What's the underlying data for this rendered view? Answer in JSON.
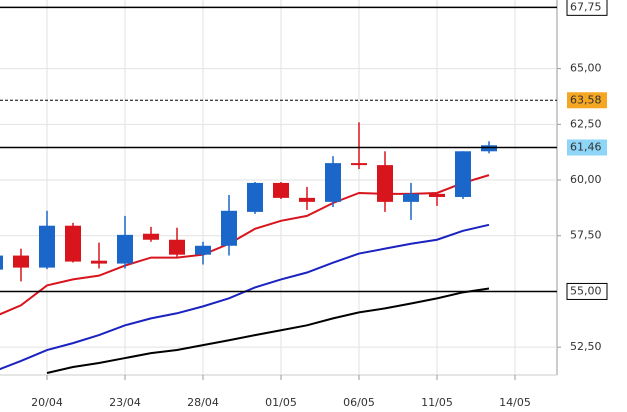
{
  "chart_data": {
    "type": "candlestick",
    "categories": [
      null,
      null,
      "20/04",
      null,
      null,
      "23/04",
      null,
      null,
      "28/04",
      null,
      null,
      "01/05",
      null,
      null,
      "06/05",
      null,
      null,
      "11/05",
      null,
      null,
      "14/05"
    ],
    "open": [
      55.98,
      56.61,
      56.07,
      57.95,
      56.38,
      56.25,
      57.59,
      57.32,
      56.65,
      57.05,
      58.57,
      59.87,
      59.2,
      59.02,
      60.76,
      60.67,
      59.02,
      59.38,
      59.24,
      61.29,
      null
    ],
    "high": [
      56.61,
      56.92,
      58.62,
      58.08,
      57.19,
      58.39,
      57.9,
      57.86,
      57.23,
      59.33,
      59.91,
      59.91,
      59.69,
      61.07,
      62.59,
      61.29,
      59.87,
      59.38,
      61.29,
      61.74,
      null
    ],
    "low": [
      55.98,
      55.45,
      56.0,
      56.3,
      56.03,
      56.03,
      57.23,
      56.56,
      56.21,
      56.61,
      58.48,
      59.15,
      58.66,
      58.79,
      60.49,
      58.57,
      58.21,
      58.84,
      59.15,
      61.2,
      null
    ],
    "close": [
      56.61,
      56.07,
      57.95,
      56.34,
      56.25,
      57.54,
      57.32,
      56.65,
      57.05,
      58.62,
      59.87,
      59.2,
      59.02,
      60.76,
      60.67,
      59.02,
      59.38,
      59.24,
      61.29,
      61.56,
      null
    ],
    "up_color": "#1a66c9",
    "down_color": "#d8141c",
    "series": [
      {
        "color": "#d8141c",
        "values": [
          53.88,
          54.38,
          55.27,
          55.54,
          55.71,
          56.16,
          56.52,
          56.52,
          56.65,
          57.14,
          57.81,
          58.17,
          58.39,
          58.97,
          59.42,
          59.38,
          59.38,
          59.42,
          59.87,
          60.22,
          null
        ]
      },
      {
        "color": "#1a22c0",
        "values": [
          51.43,
          51.88,
          52.37,
          52.68,
          53.04,
          53.48,
          53.79,
          54.02,
          54.33,
          54.69,
          55.18,
          55.54,
          55.85,
          56.29,
          56.7,
          56.92,
          57.14,
          57.32,
          57.72,
          57.99,
          null
        ]
      },
      {
        "color": "#000000",
        "values": [
          null,
          null,
          51.34,
          51.61,
          51.79,
          52.01,
          52.23,
          52.37,
          52.59,
          52.81,
          53.04,
          53.26,
          53.48,
          53.79,
          54.06,
          54.24,
          54.46,
          54.69,
          54.96,
          55.13,
          null
        ]
      }
    ],
    "levels": [
      {
        "value": 67.75,
        "label": "67,75",
        "style": "solid",
        "label_color": "#ffffff"
      },
      {
        "value": 63.58,
        "label": "63,58",
        "style": "dashed",
        "label_color": "#f5a623"
      },
      {
        "value": 61.46,
        "label": "61,46",
        "style": "solid",
        "label_color": "#8ed6f8"
      },
      {
        "value": 55.0,
        "label": "55,00",
        "style": "solid",
        "label_color": "#ffffff"
      }
    ],
    "ylim": [
      51.25,
      68.08
    ],
    "yticks": [
      {
        "value": 52.5,
        "label": "52,50"
      },
      {
        "value": 57.5,
        "label": "57,50"
      },
      {
        "value": 60,
        "label": "60,00"
      },
      {
        "value": 62.5,
        "label": "62,50"
      },
      {
        "value": 65,
        "label": "65,00"
      }
    ],
    "grid": true
  }
}
